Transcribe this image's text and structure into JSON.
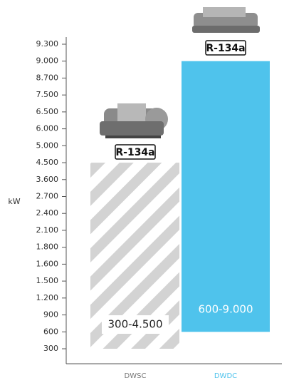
{
  "chart_data": {
    "type": "range-bar",
    "ylabel": "kW",
    "categories": [
      "DWSC",
      "DWDC"
    ],
    "low": [
      300,
      600
    ],
    "high": [
      4500,
      9000
    ],
    "value_labels": [
      "300-4.500",
      "600-9.000"
    ],
    "annotations": [
      "R-134a",
      "R-134a"
    ],
    "colors": [
      "#d3d3d3",
      "#4fc3ec"
    ],
    "patterns": [
      "stripes",
      "solid"
    ],
    "category_label_colors": [
      "#777777",
      "#4fc3ec"
    ],
    "ylim": [
      300,
      9300
    ],
    "yticks": [
      {
        "value": 300,
        "label": "300"
      },
      {
        "value": 600,
        "label": "600"
      },
      {
        "value": 900,
        "label": "900"
      },
      {
        "value": 1200,
        "label": "1.200"
      },
      {
        "value": 1500,
        "label": "1.500"
      },
      {
        "value": 1600,
        "label": "1.600"
      },
      {
        "value": 1800,
        "label": "1.800"
      },
      {
        "value": 2100,
        "label": "2.100"
      },
      {
        "value": 2400,
        "label": "2.400"
      },
      {
        "value": 2700,
        "label": "2.700"
      },
      {
        "value": 3600,
        "label": "3.600"
      },
      {
        "value": 4500,
        "label": "4.500"
      },
      {
        "value": 5000,
        "label": "5.000"
      },
      {
        "value": 6000,
        "label": "6.000"
      },
      {
        "value": 6500,
        "label": "6.500"
      },
      {
        "value": 7500,
        "label": "7.500"
      },
      {
        "value": 8700,
        "label": "8.700"
      },
      {
        "value": 9000,
        "label": "9.000"
      },
      {
        "value": 9300,
        "label": "9.300"
      }
    ]
  }
}
